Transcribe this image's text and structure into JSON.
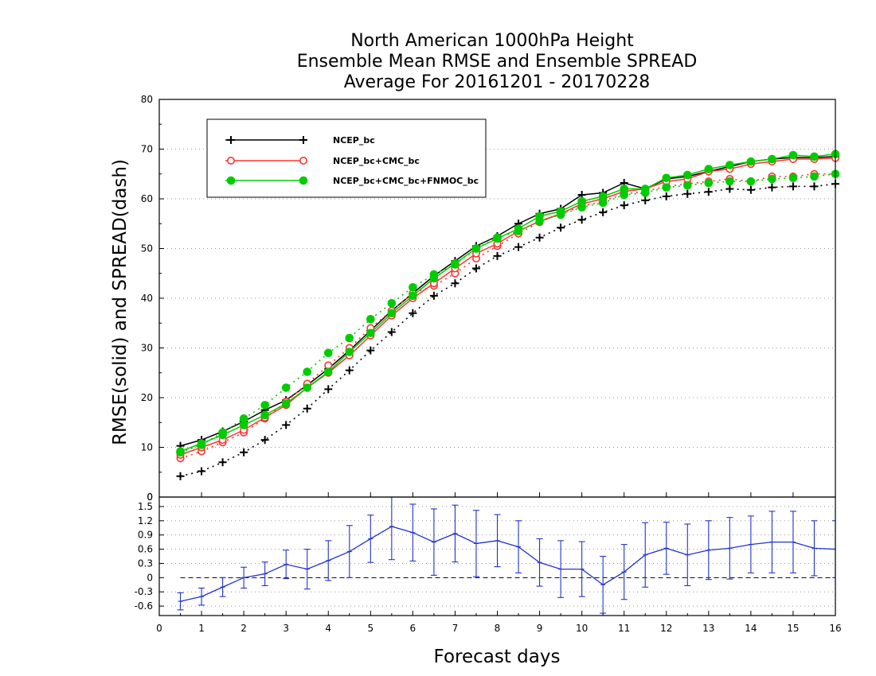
{
  "chart_data": {
    "type": "line",
    "title": [
      "North American 1000hPa Height",
      "Ensemble Mean RMSE and Ensemble SPREAD",
      "Average For 20161201 - 20170228"
    ],
    "xlabel": "Forecast days",
    "ylabel": "RMSE(solid) and SPREAD(dash)",
    "xlim": [
      0,
      16
    ],
    "xticks": [
      "0",
      "1",
      "2",
      "3",
      "4",
      "5",
      "6",
      "7",
      "8",
      "9",
      "10",
      "11",
      "12",
      "13",
      "14",
      "15",
      "16"
    ],
    "top_panel": {
      "ylim": [
        0,
        80
      ],
      "yticks": [
        "0",
        "10",
        "20",
        "30",
        "40",
        "50",
        "60",
        "70",
        "80"
      ],
      "grid": true,
      "legend_position": "upper-left",
      "x": [
        0.5,
        1,
        1.5,
        2,
        2.5,
        3,
        3.5,
        4,
        4.5,
        5,
        5.5,
        6,
        6.5,
        7,
        7.5,
        8,
        8.5,
        9,
        9.5,
        10,
        10.5,
        11,
        11.5,
        12,
        12.5,
        13,
        13.5,
        14,
        14.5,
        15,
        15.5,
        16
      ],
      "series": [
        {
          "name": "NCEP_bc",
          "color": "#000000",
          "marker": "plus",
          "rmse": [
            10.3,
            11.5,
            13.2,
            15.2,
            17.5,
            19.5,
            22.5,
            25.8,
            29.5,
            33.5,
            37.5,
            41.0,
            44.5,
            47.5,
            50.5,
            52.5,
            55.0,
            57.0,
            58.0,
            60.8,
            61.2,
            63.2,
            62.0,
            64.0,
            64.5,
            65.5,
            66.5,
            67.5,
            68.0,
            68.3,
            68.3,
            68.5
          ],
          "spread": [
            4.2,
            5.2,
            7.0,
            9.0,
            11.5,
            14.5,
            17.8,
            21.7,
            25.5,
            29.5,
            33.2,
            37.0,
            40.5,
            43.0,
            46.0,
            48.5,
            50.3,
            52.2,
            54.2,
            55.8,
            57.3,
            58.7,
            59.7,
            60.5,
            61.0,
            61.4,
            62.0,
            61.8,
            62.3,
            62.5,
            62.5,
            63.0
          ]
        },
        {
          "name": "NCEP_bc+CMC_bc",
          "color": "#ff3333",
          "marker": "circle",
          "rmse": [
            8.5,
            10.0,
            11.5,
            13.5,
            16.0,
            18.5,
            22.0,
            25.0,
            28.5,
            32.5,
            36.5,
            40.0,
            43.0,
            46.0,
            49.0,
            51.0,
            53.5,
            55.5,
            57.0,
            59.0,
            60.0,
            61.5,
            62.0,
            63.5,
            64.0,
            65.5,
            66.0,
            67.0,
            67.5,
            68.0,
            68.0,
            68.2
          ],
          "spread": [
            7.8,
            9.2,
            11.0,
            13.0,
            15.8,
            19.2,
            22.8,
            26.5,
            30.0,
            34.0,
            37.5,
            41.0,
            42.5,
            45.0,
            48.0,
            50.5,
            53.0,
            55.3,
            57.0,
            58.5,
            59.5,
            61.0,
            61.5,
            62.5,
            63.0,
            63.5,
            64.0,
            63.5,
            64.5,
            64.5,
            65.0,
            65.0
          ]
        },
        {
          "name": "NCEP_bc+CMC_bc+FNMOC_bc",
          "color": "#00cc00",
          "marker": "dot",
          "rmse": [
            9.2,
            10.8,
            12.5,
            14.5,
            16.5,
            18.8,
            22.0,
            25.2,
            29.2,
            33.0,
            37.0,
            40.5,
            44.0,
            47.0,
            50.0,
            52.0,
            54.0,
            56.5,
            57.5,
            59.5,
            60.5,
            62.0,
            62.0,
            64.2,
            64.8,
            66.0,
            66.8,
            67.5,
            68.0,
            68.8,
            68.5,
            69.0
          ],
          "spread": [
            9.0,
            10.5,
            13.0,
            15.8,
            18.5,
            22.0,
            25.2,
            29.0,
            32.0,
            35.8,
            39.0,
            42.2,
            44.8,
            46.8,
            50.0,
            52.2,
            53.5,
            55.5,
            56.8,
            58.3,
            59.2,
            60.8,
            61.2,
            62.3,
            62.7,
            63.2,
            63.5,
            63.5,
            64.0,
            64.2,
            64.5,
            65.0
          ]
        }
      ]
    },
    "bottom_panel": {
      "ylim": [
        -0.8,
        1.7
      ],
      "yticks": [
        "-0.6",
        "-0.3",
        "0",
        "0.3",
        "0.6",
        "0.9",
        "1.2",
        "1.5"
      ],
      "grid": true,
      "color": "#2233cc",
      "x": [
        0.5,
        1,
        1.5,
        2,
        2.5,
        3,
        3.5,
        4,
        4.5,
        5,
        5.5,
        6,
        6.5,
        7,
        7.5,
        8,
        8.5,
        9,
        9.5,
        10,
        10.5,
        11,
        11.5,
        12,
        12.5,
        13,
        13.5,
        14,
        14.5,
        15,
        15.5,
        16
      ],
      "values": [
        -0.5,
        -0.4,
        -0.2,
        0.0,
        0.08,
        0.28,
        0.18,
        0.36,
        0.55,
        0.82,
        1.08,
        0.95,
        0.75,
        0.93,
        0.72,
        0.78,
        0.65,
        0.32,
        0.18,
        0.18,
        -0.15,
        0.12,
        0.48,
        0.62,
        0.48,
        0.58,
        0.62,
        0.7,
        0.75,
        0.75,
        0.62,
        0.6
      ],
      "error": [
        0.18,
        0.18,
        0.2,
        0.22,
        0.25,
        0.3,
        0.42,
        0.42,
        0.55,
        0.5,
        0.7,
        0.6,
        0.7,
        0.6,
        0.7,
        0.55,
        0.55,
        0.5,
        0.6,
        0.58,
        0.6,
        0.58,
        0.68,
        0.55,
        0.65,
        0.62,
        0.65,
        0.6,
        0.65,
        0.65,
        0.58,
        0.6
      ]
    }
  }
}
